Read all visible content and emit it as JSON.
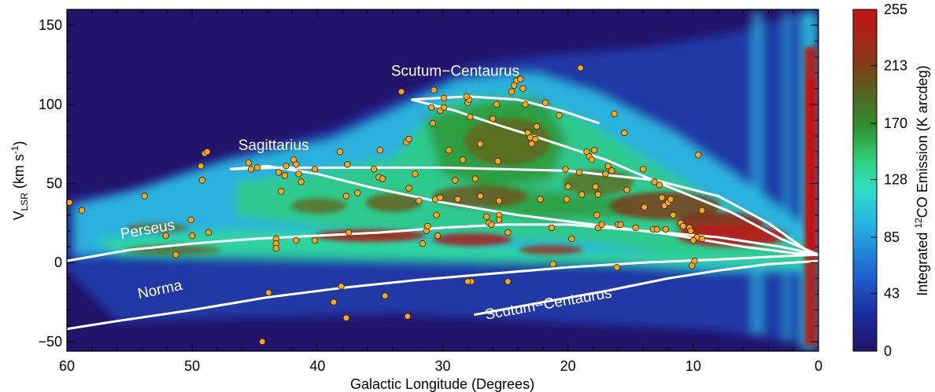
{
  "chart_data": {
    "type": "heatmap",
    "title": "",
    "xlabel": "Galactic Longitude (Degrees)",
    "ylabel": {
      "main": "V",
      "sub": "LSR",
      "unit_pre": " (km s",
      "unit_sup": "-1",
      "unit_post": ")"
    },
    "xlim": [
      60,
      0
    ],
    "ylim": [
      -56,
      160
    ],
    "x_ticks": [
      60,
      50,
      40,
      30,
      20,
      10,
      0
    ],
    "y_ticks": [
      -50,
      0,
      50,
      100,
      150
    ],
    "y_tick_labels": [
      "−50",
      "0",
      "50",
      "100",
      "150"
    ],
    "grid": false,
    "colorbar": {
      "label_pre": "Integrated ",
      "label_sup": "12",
      "label_post": "CO Emission (K arcdeg)",
      "ticks": [
        0,
        43,
        85,
        128,
        170,
        213,
        255
      ],
      "range": [
        0,
        255
      ],
      "colormap": [
        "#22136b",
        "#1b2fa0",
        "#1f6fd6",
        "#2bd0e0",
        "#2fd89a",
        "#2e9a2f",
        "#5e6a1e",
        "#8c3217",
        "#c41414"
      ]
    },
    "background_color": "#22136b",
    "arm_color": "#ffffff",
    "point_color": "#f5a81c",
    "arms": [
      {
        "name": "Scutum−Centaurus",
        "label_at": [
          29,
          118
        ],
        "label_rot": 0,
        "points": [
          [
            32.5,
            103
          ],
          [
            28,
            105
          ],
          [
            24,
            103
          ],
          [
            20.5,
            96
          ],
          [
            17.5,
            88
          ]
        ]
      },
      {
        "name": "",
        "label_at": null,
        "label_rot": 0,
        "points": [
          [
            32.5,
            103
          ],
          [
            29,
            96
          ],
          [
            26,
            88
          ],
          [
            22,
            78
          ],
          [
            17,
            65
          ],
          [
            12,
            48
          ],
          [
            7,
            32
          ],
          [
            3,
            15
          ],
          [
            0,
            5
          ]
        ]
      },
      {
        "name": "Sagittarius",
        "label_at": [
          43.5,
          71
        ],
        "label_rot": 0,
        "points": [
          [
            47,
            59
          ],
          [
            44,
            61
          ],
          [
            40,
            56
          ],
          [
            36,
            48
          ],
          [
            30,
            38
          ],
          [
            24,
            30
          ],
          [
            18,
            24
          ],
          [
            12,
            18
          ],
          [
            6,
            10
          ],
          [
            2,
            6
          ],
          [
            0,
            5
          ]
        ]
      },
      {
        "name": "",
        "label_at": null,
        "label_rot": 0,
        "points": [
          [
            47,
            59
          ],
          [
            43,
            60
          ],
          [
            38,
            60
          ],
          [
            30,
            60
          ],
          [
            20,
            58
          ],
          [
            13,
            52
          ],
          [
            8,
            42
          ],
          [
            4,
            25
          ],
          [
            1,
            8
          ],
          [
            0,
            5
          ]
        ]
      },
      {
        "name": "Perseus",
        "label_at": [
          53.5,
          18
        ],
        "label_rot": -10,
        "points": [
          [
            60,
            1
          ],
          [
            55,
            8
          ],
          [
            50,
            12
          ],
          [
            45,
            15
          ],
          [
            40,
            17
          ],
          [
            35,
            19
          ],
          [
            30,
            22
          ],
          [
            25,
            24
          ],
          [
            20,
            24
          ],
          [
            14,
            20
          ],
          [
            8,
            16
          ],
          [
            3,
            10
          ],
          [
            0,
            5
          ]
        ]
      },
      {
        "name": "Norma",
        "label_at": [
          52.5,
          -20
        ],
        "label_rot": -12,
        "points": [
          [
            60,
            -42
          ],
          [
            56,
            -37
          ],
          [
            50,
            -30
          ],
          [
            44,
            -22
          ],
          [
            38,
            -16
          ],
          [
            32,
            -11
          ],
          [
            26,
            -7
          ],
          [
            20,
            -3
          ],
          [
            14,
            0
          ],
          [
            8,
            2
          ],
          [
            3,
            4
          ],
          [
            0,
            5
          ]
        ]
      },
      {
        "name": "Scutum−Centaurus",
        "label_at": [
          21.5,
          -29
        ],
        "label_rot": -10,
        "points": [
          [
            27.5,
            -33
          ],
          [
            22,
            -25
          ],
          [
            17,
            -18
          ],
          [
            12,
            -10
          ],
          [
            8,
            -5
          ],
          [
            4,
            -1
          ],
          [
            0,
            1
          ]
        ]
      }
    ],
    "points": [
      [
        59.8,
        38
      ],
      [
        58.8,
        33
      ],
      [
        53.8,
        42
      ],
      [
        52.1,
        17
      ],
      [
        51.3,
        5
      ],
      [
        50.1,
        27
      ],
      [
        50.0,
        17
      ],
      [
        48.7,
        19
      ],
      [
        49.0,
        69
      ],
      [
        48.8,
        70
      ],
      [
        49.3,
        61
      ],
      [
        49.2,
        52
      ],
      [
        45.5,
        63
      ],
      [
        45.3,
        59
      ],
      [
        44.8,
        60
      ],
      [
        43.1,
        57
      ],
      [
        42.6,
        55
      ],
      [
        42.5,
        61
      ],
      [
        41.9,
        65
      ],
      [
        41.5,
        56
      ],
      [
        41.3,
        51
      ],
      [
        40.2,
        59
      ],
      [
        42.9,
        45
      ],
      [
        41.7,
        62
      ],
      [
        43.3,
        15
      ],
      [
        43.3,
        12
      ],
      [
        43.3,
        9
      ],
      [
        41.7,
        14
      ],
      [
        40.2,
        14
      ],
      [
        38.2,
        70
      ],
      [
        37.6,
        62
      ],
      [
        37.7,
        42
      ],
      [
        36.8,
        44
      ],
      [
        37.5,
        19
      ],
      [
        35.0,
        71
      ],
      [
        35.5,
        59
      ],
      [
        35.1,
        54
      ],
      [
        34.8,
        53
      ],
      [
        33.3,
        108
      ],
      [
        32.9,
        76
      ],
      [
        32.7,
        78
      ],
      [
        32.7,
        47
      ],
      [
        32.2,
        56
      ],
      [
        31.9,
        39
      ],
      [
        31.6,
        12
      ],
      [
        31.3,
        20
      ],
      [
        31.2,
        23
      ],
      [
        30.9,
        98
      ],
      [
        30.8,
        88
      ],
      [
        30.7,
        109
      ],
      [
        30.6,
        40
      ],
      [
        30.5,
        30
      ],
      [
        30.2,
        41
      ],
      [
        30.4,
        17
      ],
      [
        30.2,
        96
      ],
      [
        29.9,
        98
      ],
      [
        29.9,
        104
      ],
      [
        29.5,
        71
      ],
      [
        29.0,
        52
      ],
      [
        28.8,
        40
      ],
      [
        28.4,
        65
      ],
      [
        28.0,
        101
      ],
      [
        27.9,
        103
      ],
      [
        28.1,
        105
      ],
      [
        27.8,
        92
      ],
      [
        27.4,
        53
      ],
      [
        27.0,
        75
      ],
      [
        27.0,
        42
      ],
      [
        26.5,
        29
      ],
      [
        26.3,
        25
      ],
      [
        26.1,
        24
      ],
      [
        26.0,
        91
      ],
      [
        25.7,
        100
      ],
      [
        25.6,
        64
      ],
      [
        25.5,
        39
      ],
      [
        25.5,
        30
      ],
      [
        25.5,
        27
      ],
      [
        24.8,
        19
      ],
      [
        24.5,
        108
      ],
      [
        24.3,
        112
      ],
      [
        24.1,
        115
      ],
      [
        23.8,
        116
      ],
      [
        23.6,
        110
      ],
      [
        23.4,
        100
      ],
      [
        23.2,
        82
      ],
      [
        23.0,
        79
      ],
      [
        22.9,
        75
      ],
      [
        22.6,
        78
      ],
      [
        22.5,
        86
      ],
      [
        22.2,
        40
      ],
      [
        21.8,
        101
      ],
      [
        21.3,
        22
      ],
      [
        21.2,
        -1
      ],
      [
        20.7,
        93
      ],
      [
        20.1,
        40
      ],
      [
        20.2,
        59
      ],
      [
        20.0,
        48
      ],
      [
        19.7,
        15
      ],
      [
        19.1,
        57
      ],
      [
        19.0,
        123
      ],
      [
        18.9,
        43
      ],
      [
        18.5,
        70
      ],
      [
        18.3,
        67
      ],
      [
        18.1,
        65
      ],
      [
        17.9,
        71
      ],
      [
        17.6,
        43
      ],
      [
        17.8,
        48
      ],
      [
        17.7,
        30
      ],
      [
        17.6,
        22
      ],
      [
        17.3,
        24
      ],
      [
        17.0,
        56
      ],
      [
        16.8,
        61
      ],
      [
        16.5,
        58
      ],
      [
        16.3,
        94
      ],
      [
        16.0,
        24
      ],
      [
        15.8,
        24
      ],
      [
        15.5,
        82
      ],
      [
        15.3,
        46
      ],
      [
        14.6,
        22
      ],
      [
        14.0,
        59
      ],
      [
        13.9,
        35
      ],
      [
        13.2,
        21
      ],
      [
        13.1,
        51
      ],
      [
        12.9,
        21
      ],
      [
        12.7,
        49
      ],
      [
        12.5,
        41
      ],
      [
        12.3,
        36
      ],
      [
        12.2,
        21
      ],
      [
        12.0,
        38
      ],
      [
        11.8,
        40
      ],
      [
        11.6,
        30
      ],
      [
        11.0,
        25
      ],
      [
        10.8,
        23
      ],
      [
        10.3,
        22
      ],
      [
        10.2,
        20
      ],
      [
        9.7,
        16
      ],
      [
        10.0,
        14
      ],
      [
        9.6,
        68
      ],
      [
        9.3,
        33
      ],
      [
        9.3,
        15
      ],
      [
        9.9,
        1
      ],
      [
        10.1,
        -2
      ],
      [
        16.1,
        -3
      ],
      [
        27.7,
        -12
      ],
      [
        28.0,
        -12
      ],
      [
        24.8,
        -12
      ],
      [
        32.8,
        -34
      ],
      [
        34.6,
        -21
      ],
      [
        37.7,
        -35
      ],
      [
        38.1,
        -15
      ],
      [
        38.7,
        -25
      ],
      [
        43.9,
        -19
      ],
      [
        44.4,
        -50
      ]
    ]
  }
}
